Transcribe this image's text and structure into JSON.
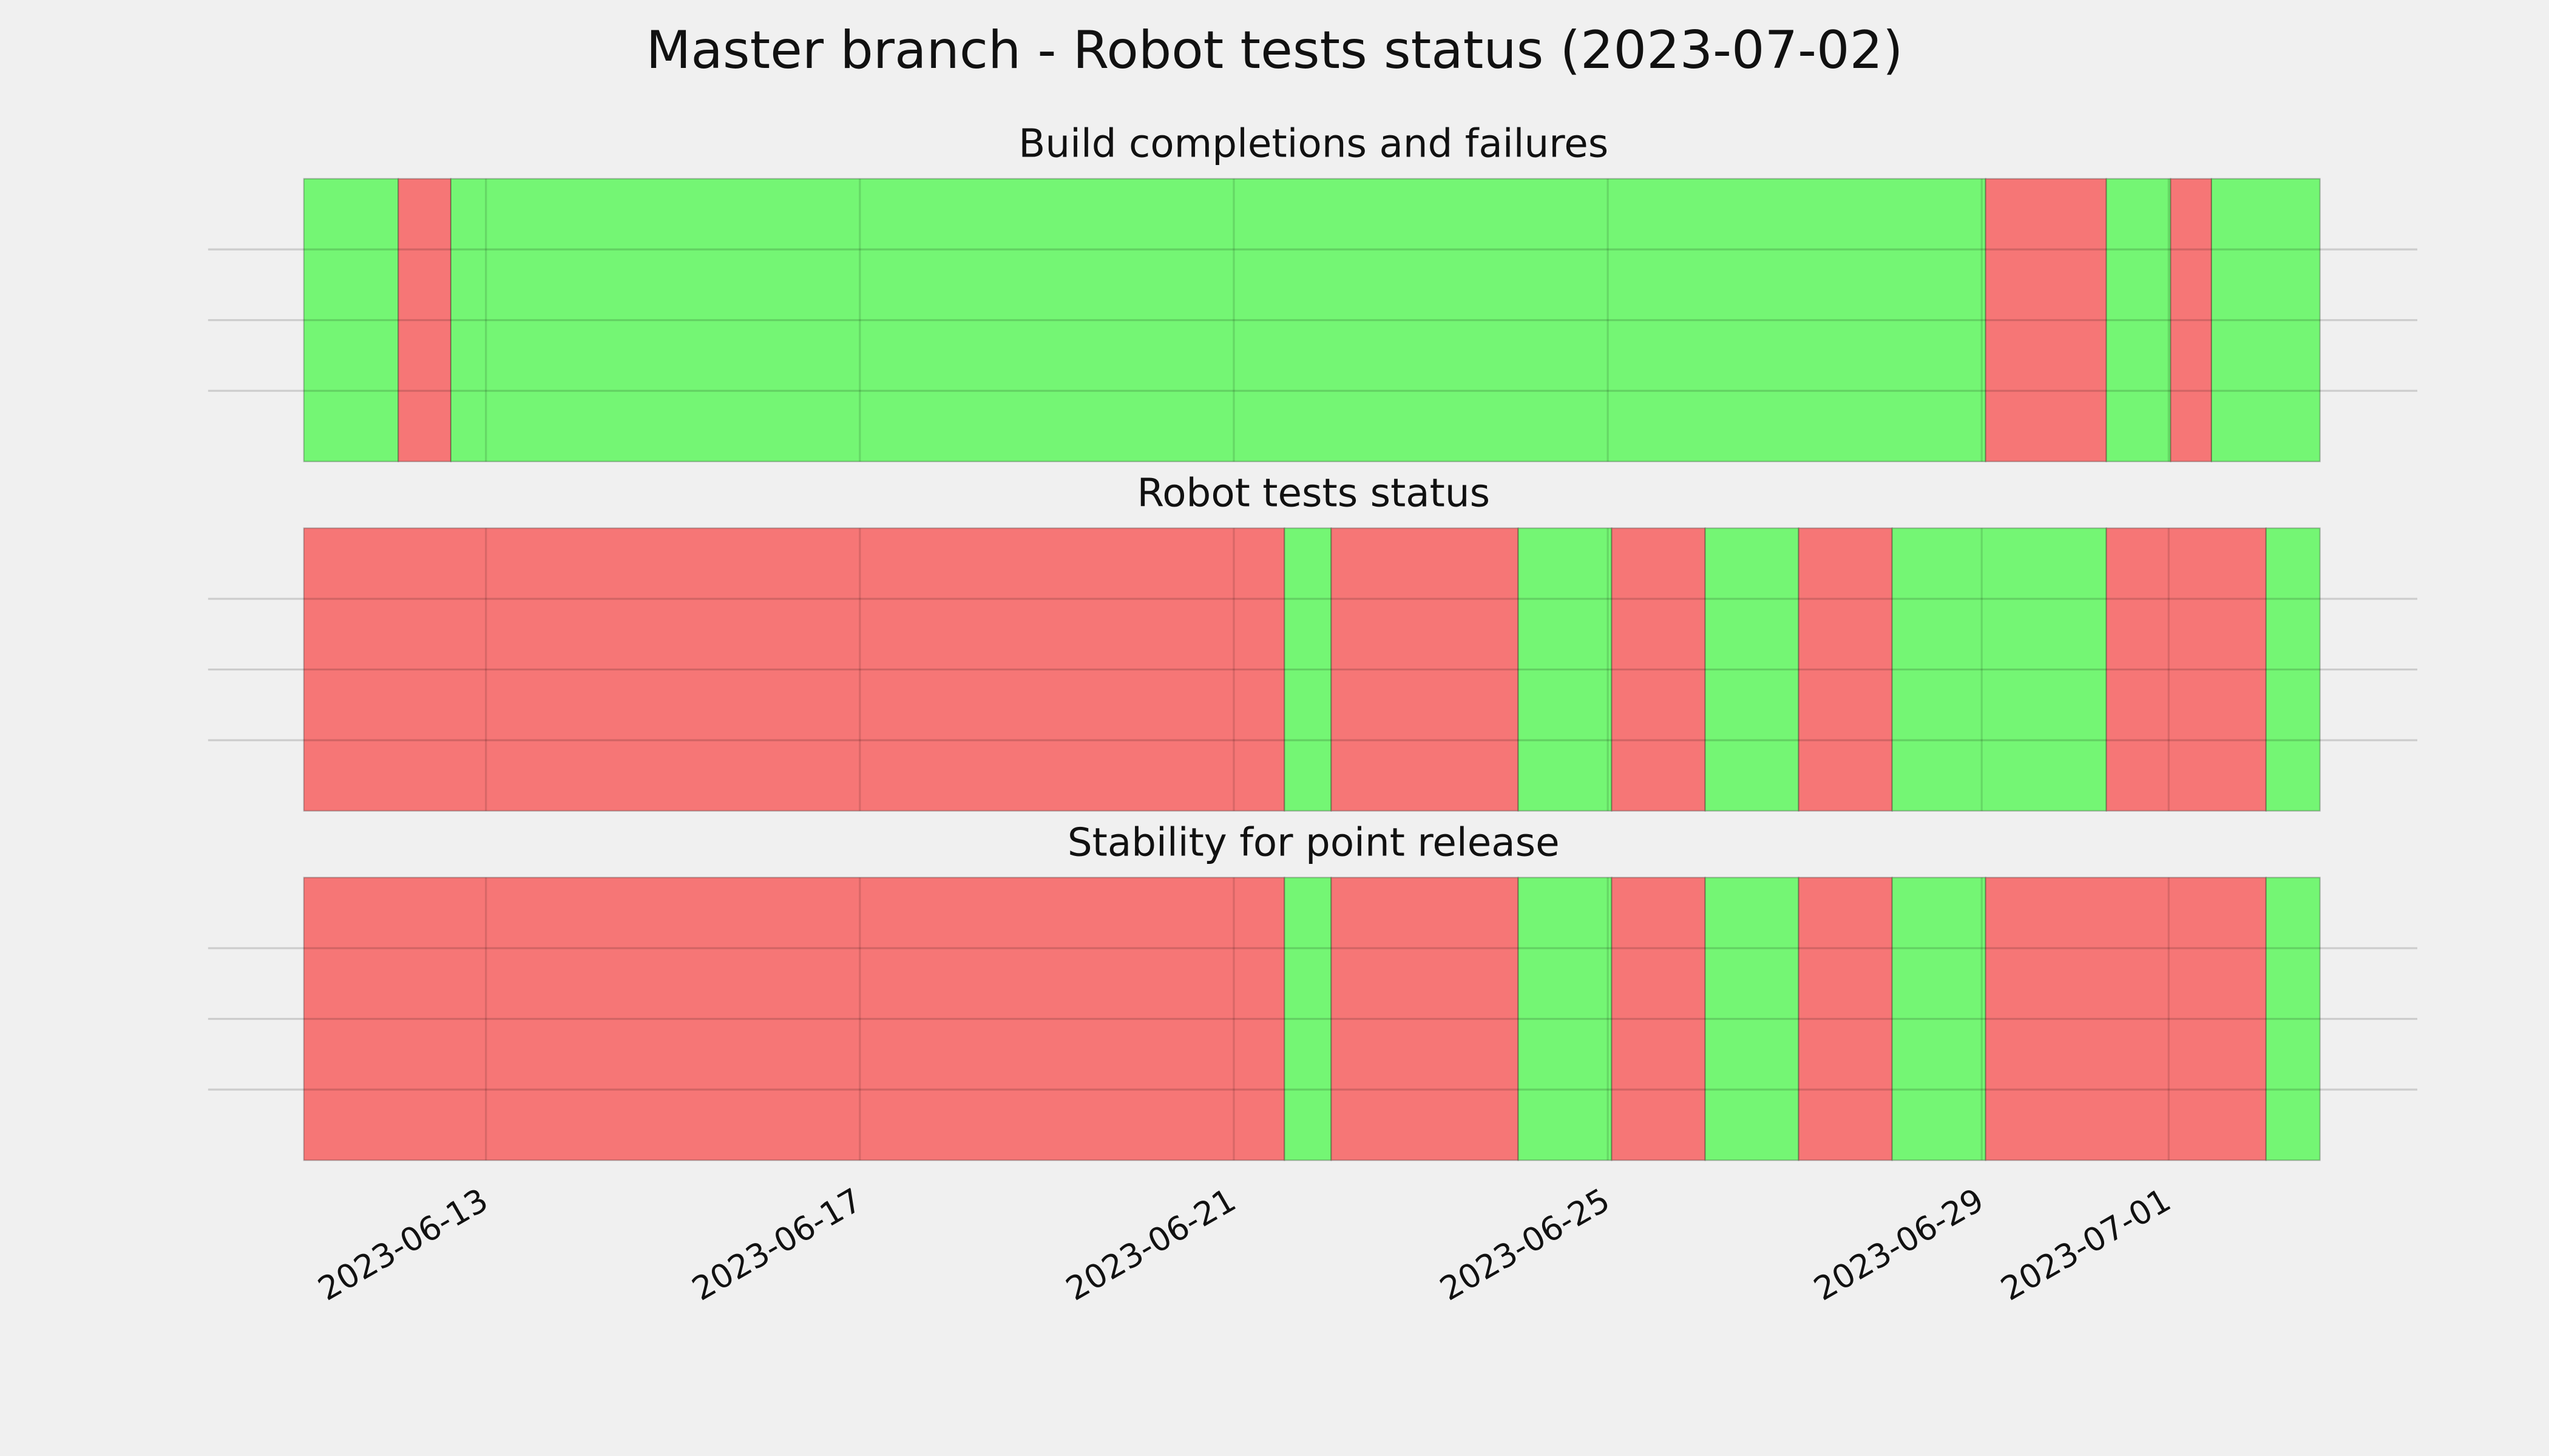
{
  "chart_data": {
    "type": "timeline",
    "title": "Master branch - Robot tests status (2023-07-02)",
    "xlim": [
      "2023-06-10T00:40",
      "2023-07-03T15:50"
    ],
    "xticks": [
      "2023-06-13",
      "2023-06-17",
      "2023-06-21",
      "2023-06-25",
      "2023-06-29",
      "2023-07-01"
    ],
    "grid": true,
    "panels": [
      {
        "title": "Build completions and failures",
        "ylim": [
          0,
          1
        ],
        "yticks": [
          0.25,
          0.5,
          0.75
        ],
        "x": [
          "2023-06-11T01:15",
          "2023-06-12T01:30",
          "2023-06-12T15:00",
          "2023-06-29T01:00",
          "2023-06-30T08:00",
          "2023-07-01T00:30",
          "2023-07-01T11:00",
          "2023-07-02T14:50"
        ],
        "colors": [
          "#74f674",
          "#f67676",
          "#74f674",
          "#f67676",
          "#74f674",
          "#f67676",
          "#74f674"
        ]
      },
      {
        "title": "Robot tests status",
        "ylim": [
          0,
          1
        ],
        "yticks": [
          0.25,
          0.5,
          0.75
        ],
        "x": [
          "2023-06-11T01:15",
          "2023-06-21T13:00",
          "2023-06-22T01:00",
          "2023-06-24T01:00",
          "2023-06-25T01:00",
          "2023-06-26T01:00",
          "2023-06-27T01:00",
          "2023-06-28T01:00",
          "2023-06-30T08:00",
          "2023-07-02T01:00",
          "2023-07-02T14:50"
        ],
        "colors": [
          "#f67676",
          "#74f674",
          "#f67676",
          "#74f674",
          "#f67676",
          "#74f674",
          "#f67676",
          "#74f674",
          "#f67676",
          "#74f674"
        ]
      },
      {
        "title": "Stability for point release",
        "ylim": [
          0,
          1
        ],
        "yticks": [
          0.25,
          0.5,
          0.75
        ],
        "x": [
          "2023-06-11T01:15",
          "2023-06-21T13:00",
          "2023-06-22T01:00",
          "2023-06-24T01:00",
          "2023-06-25T01:00",
          "2023-06-26T01:00",
          "2023-06-27T01:00",
          "2023-06-28T01:00",
          "2023-06-29T01:00",
          "2023-07-02T01:00",
          "2023-07-02T14:50"
        ],
        "colors": [
          "#f67676",
          "#74f674",
          "#f67676",
          "#74f674",
          "#f67676",
          "#74f674",
          "#f67676",
          "#74f674",
          "#f67676",
          "#74f674"
        ]
      }
    ]
  }
}
